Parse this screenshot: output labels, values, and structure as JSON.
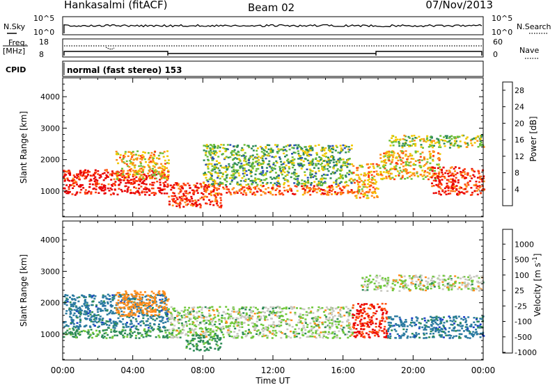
{
  "header": {
    "station": "Hankasalmi (fitACF)",
    "beam": "Beam 02",
    "date": "07/Nov/2013"
  },
  "panels": {
    "nsky_label": "N.Sky",
    "nsearch_label": "N.Search",
    "freq_label_1": "Freq.",
    "freq_label_2": "[MHz]",
    "nave_label": "Nave",
    "cpid_label": "CPID",
    "cpid_value": "normal (fast stereo) 153",
    "noise_ticks": [
      "10^5",
      "10^0"
    ],
    "freq_ticks": [
      "18",
      "8"
    ],
    "nave_ticks": [
      "60",
      "0"
    ]
  },
  "chart_data": [
    {
      "type": "heatmap",
      "title": "",
      "xlabel": "Time UT",
      "ylabel": "Slant Range [km]",
      "xlim": [
        0,
        24
      ],
      "ylim": [
        180,
        4600
      ],
      "x_ticks": [
        "00:00",
        "04:00",
        "08:00",
        "12:00",
        "16:00",
        "20:00",
        "00:00"
      ],
      "y_ticks": [
        1000,
        2000,
        3000,
        4000
      ],
      "colorbar": {
        "label": "Power [dB]",
        "ticks": [
          4,
          8,
          12,
          16,
          20,
          24,
          28
        ],
        "range": [
          0,
          30
        ],
        "colors": [
          "#1a1aff",
          "#2850b4",
          "#2e8b57",
          "#6fbf3a",
          "#f0c800",
          "#ff8c1a",
          "#ff4010",
          "#e80000"
        ]
      },
      "scatter_regions": [
        {
          "t": [
            0,
            6
          ],
          "range": [
            900,
            1700
          ],
          "value": 28
        },
        {
          "t": [
            3,
            6
          ],
          "range": [
            1400,
            2300
          ],
          "value": 18
        },
        {
          "t": [
            6,
            9
          ],
          "range": [
            500,
            1300
          ],
          "value": 26
        },
        {
          "t": [
            8,
            16.5
          ],
          "range": [
            900,
            1200
          ],
          "value": 24
        },
        {
          "t": [
            8,
            16.5
          ],
          "range": [
            1200,
            2500
          ],
          "value": 12
        },
        {
          "t": [
            16.5,
            18
          ],
          "range": [
            800,
            1900
          ],
          "value": 20
        },
        {
          "t": [
            18,
            21.5
          ],
          "range": [
            1400,
            2300
          ],
          "value": 18
        },
        {
          "t": [
            18.5,
            24
          ],
          "range": [
            2400,
            2800
          ],
          "value": 14
        },
        {
          "t": [
            21,
            24
          ],
          "range": [
            900,
            1800
          ],
          "value": 26
        }
      ]
    },
    {
      "type": "heatmap",
      "title": "",
      "xlabel": "Time UT",
      "ylabel": "Slant Range [km]",
      "xlim": [
        0,
        24
      ],
      "ylim": [
        180,
        4600
      ],
      "x_ticks": [
        "00:00",
        "04:00",
        "08:00",
        "12:00",
        "16:00",
        "20:00",
        "00:00"
      ],
      "y_ticks": [
        1000,
        2000,
        3000,
        4000
      ],
      "colorbar": {
        "label": "Velocity [m s^-1]",
        "ticks": [
          "1000",
          "500",
          "100",
          "25",
          "-25",
          "-100",
          "-500",
          "-1000"
        ],
        "colors": [
          "#1a3cc8",
          "#2a7aa0",
          "#2e8b57",
          "#6fc83a",
          "#c8c8c0",
          "#ff8c1a",
          "#ff5010",
          "#e80000"
        ]
      },
      "scatter_regions": [
        {
          "t": [
            0,
            6
          ],
          "range": [
            900,
            1200
          ],
          "value": 100
        },
        {
          "t": [
            0,
            6
          ],
          "range": [
            1200,
            2300
          ],
          "value": 500
        },
        {
          "t": [
            6,
            16.5
          ],
          "range": [
            900,
            1900
          ],
          "value": 0
        },
        {
          "t": [
            3,
            6
          ],
          "range": [
            1600,
            2400
          ],
          "value": -200
        },
        {
          "t": [
            7,
            9
          ],
          "range": [
            500,
            1000
          ],
          "value": 100
        },
        {
          "t": [
            16.5,
            18.5
          ],
          "range": [
            900,
            2000
          ],
          "value": -800
        },
        {
          "t": [
            17,
            24
          ],
          "range": [
            2400,
            2900
          ],
          "value": 0
        },
        {
          "t": [
            18.5,
            24
          ],
          "range": [
            900,
            1600
          ],
          "value": 500
        }
      ]
    }
  ]
}
